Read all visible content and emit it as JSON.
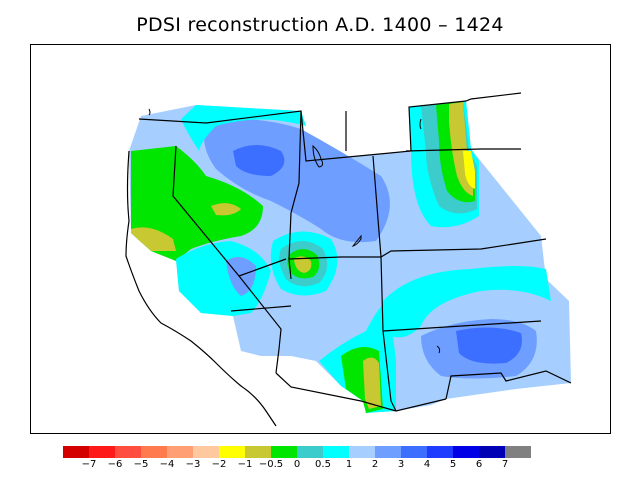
{
  "title": "PDSI reconstruction A.D. 1400 – 1424",
  "legend": {
    "colors": [
      "#d40000",
      "#ff1a1a",
      "#ff4d40",
      "#ff7a4d",
      "#ff9f73",
      "#ffc9a0",
      "#ffff00",
      "#c8c832",
      "#00e600",
      "#3ccccc",
      "#00ffff",
      "#a6cfff",
      "#6e9eff",
      "#3c6eff",
      "#1e3cff",
      "#0000e6",
      "#0000b4",
      "#808080"
    ],
    "labels": [
      "−7",
      "−6",
      "−5",
      "−4",
      "−3",
      "−2",
      "−1",
      "−0.5",
      "0",
      "0.5",
      "1",
      "2",
      "3",
      "4",
      "5",
      "6",
      "7"
    ]
  },
  "map": {
    "fill_colors": {
      "light_blue": "#a6cfff",
      "mid_blue": "#6e9eff",
      "blue": "#3c6eff",
      "cyan": "#00ffff",
      "teal": "#3ccccc",
      "green": "#00e600",
      "olive": "#c8c832",
      "yellow": "#ffff00"
    }
  }
}
